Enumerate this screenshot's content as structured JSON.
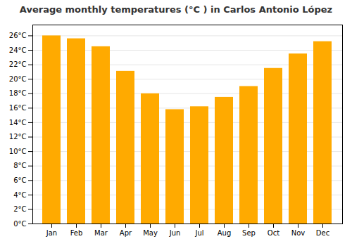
{
  "chart_data": {
    "type": "bar",
    "title": "Average monthly temperatures (°C ) in Carlos Antonio López",
    "categories": [
      "Jan",
      "Feb",
      "Mar",
      "Apr",
      "May",
      "Jun",
      "Jul",
      "Aug",
      "Sep",
      "Oct",
      "Nov",
      "Dec"
    ],
    "values": [
      26.0,
      25.6,
      24.5,
      21.1,
      18.0,
      15.8,
      16.2,
      17.5,
      19.0,
      21.5,
      23.5,
      25.2
    ],
    "color": "#FFAA00",
    "ylim": [
      0,
      27.5
    ],
    "yticks": [
      {
        "value": 0,
        "label": "0°C"
      },
      {
        "value": 2,
        "label": "2°C"
      },
      {
        "value": 4,
        "label": "4°C"
      },
      {
        "value": 6,
        "label": "6°C"
      },
      {
        "value": 8,
        "label": "8°C"
      },
      {
        "value": 10,
        "label": "10°C"
      },
      {
        "value": 12,
        "label": "12°C"
      },
      {
        "value": 14,
        "label": "14°C"
      },
      {
        "value": 16,
        "label": "16°C"
      },
      {
        "value": 18,
        "label": "18°C"
      },
      {
        "value": 20,
        "label": "20°C"
      },
      {
        "value": 22,
        "label": "22°C"
      },
      {
        "value": 24,
        "label": "24°C"
      },
      {
        "value": 26,
        "label": "26°C"
      }
    ],
    "grid": true
  }
}
